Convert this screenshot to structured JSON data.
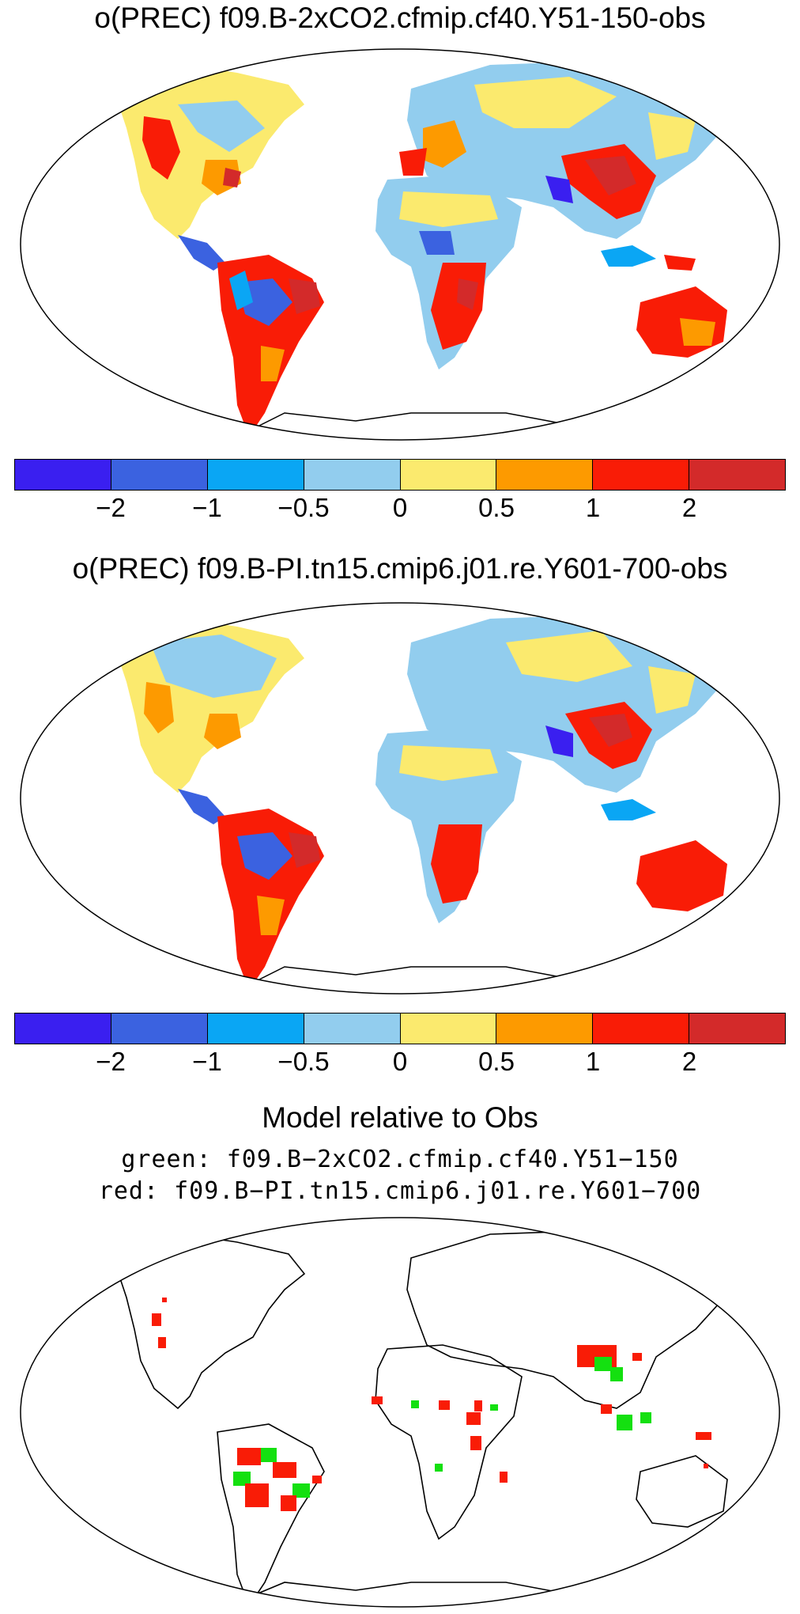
{
  "panels": [
    {
      "title": "o(PREC) f09.B-2xCO2.cfmip.cf40.Y51-150-obs"
    },
    {
      "title": "o(PREC) f09.B-PI.tn15.cmip6.j01.re.Y601-700-obs"
    }
  ],
  "colorbar": {
    "colors": [
      "#3a1ff0",
      "#3b62e0",
      "#0aa6f4",
      "#92cdee",
      "#fbea6e",
      "#fd9a00",
      "#f91c06",
      "#d32a2a"
    ],
    "ticks": [
      "−2",
      "−1",
      "−0.5",
      "0",
      "0.5",
      "1",
      "2"
    ]
  },
  "comparison": {
    "title": "Model relative to Obs",
    "line1": "green: f09.B−2xCO2.cfmip.cf40.Y51−150",
    "line2": "red: f09.B−PI.tn15.cmip6.j01.re.Y601−700",
    "green": "#14e010",
    "red": "#f91c06"
  }
}
